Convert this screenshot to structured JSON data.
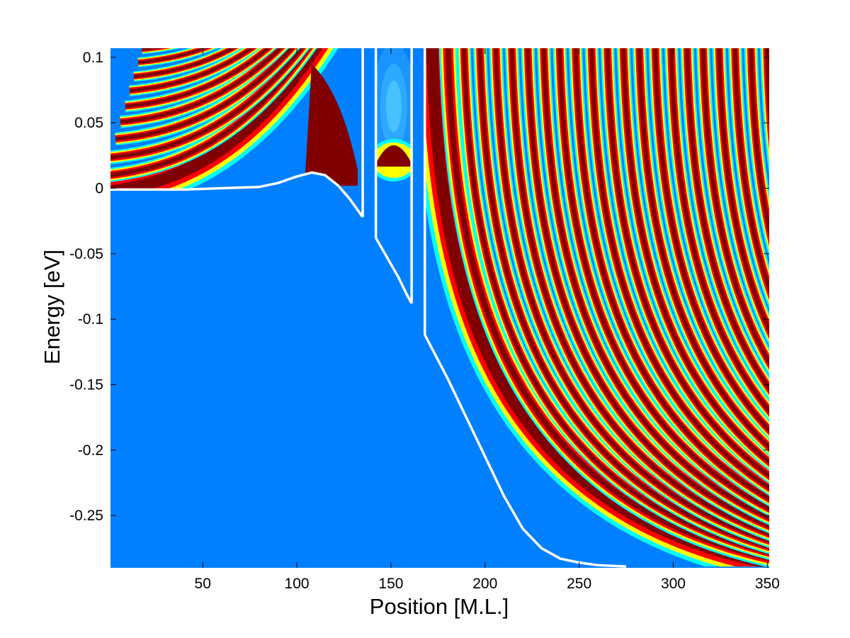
{
  "chart_data": {
    "type": "heatmap",
    "title": "",
    "xlabel": "Position [M.L.]",
    "ylabel": "Energy [eV]",
    "xlim": [
      1,
      351
    ],
    "ylim": [
      -0.29,
      0.107
    ],
    "xticks": [
      50,
      100,
      150,
      200,
      250,
      300,
      350
    ],
    "xtick_labels": [
      "50",
      "100",
      "150",
      "200",
      "250",
      "300",
      "350"
    ],
    "yticks": [
      0.1,
      0.05,
      0,
      -0.05,
      -0.1,
      -0.15,
      -0.2,
      -0.25
    ],
    "ytick_labels": [
      "0.1",
      "0.05",
      "0",
      "-0.05",
      "-0.1",
      "-0.15",
      "-0.2",
      "-0.25"
    ],
    "colormap": "jet",
    "background_color": "#0080ff",
    "grid": false,
    "legend": "none",
    "colors": {
      "dark_red": "#800000",
      "red": "#ff0000",
      "yellow": "#ffff00",
      "cyan": "#00ffff",
      "blue": "#0080ff",
      "band_edge": "#ffffff"
    },
    "series": [
      {
        "type": "line",
        "color": "#ffffff",
        "x": [
          1,
          40,
          60,
          80,
          90,
          100,
          108,
          115,
          122,
          128,
          132,
          135
        ],
        "y": [
          -0.001,
          -0.001,
          0.0,
          0.001,
          0.004,
          0.009,
          0.012,
          0.01,
          0.002,
          -0.008,
          -0.016,
          -0.022
        ]
      },
      {
        "type": "line",
        "color": "#ffffff",
        "x": [
          135,
          135
        ],
        "y": [
          -0.022,
          0.107
        ]
      },
      {
        "type": "line",
        "color": "#ffffff",
        "x": [
          142,
          142
        ],
        "y": [
          0.107,
          -0.038
        ]
      },
      {
        "type": "line",
        "color": "#ffffff",
        "x": [
          142,
          146,
          150,
          154,
          158,
          161
        ],
        "y": [
          -0.038,
          -0.048,
          -0.058,
          -0.068,
          -0.08,
          -0.088
        ]
      },
      {
        "type": "line",
        "color": "#ffffff",
        "x": [
          161,
          161
        ],
        "y": [
          -0.088,
          0.107
        ]
      },
      {
        "type": "line",
        "color": "#ffffff",
        "x": [
          168,
          168
        ],
        "y": [
          0.107,
          -0.112
        ]
      },
      {
        "type": "line",
        "color": "#ffffff",
        "x": [
          168,
          180,
          190,
          200,
          210,
          220,
          230,
          240,
          250,
          260,
          275
        ],
        "y": [
          -0.112,
          -0.145,
          -0.175,
          -0.205,
          -0.235,
          -0.26,
          -0.275,
          -0.283,
          -0.286,
          -0.288,
          -0.289
        ]
      }
    ]
  }
}
